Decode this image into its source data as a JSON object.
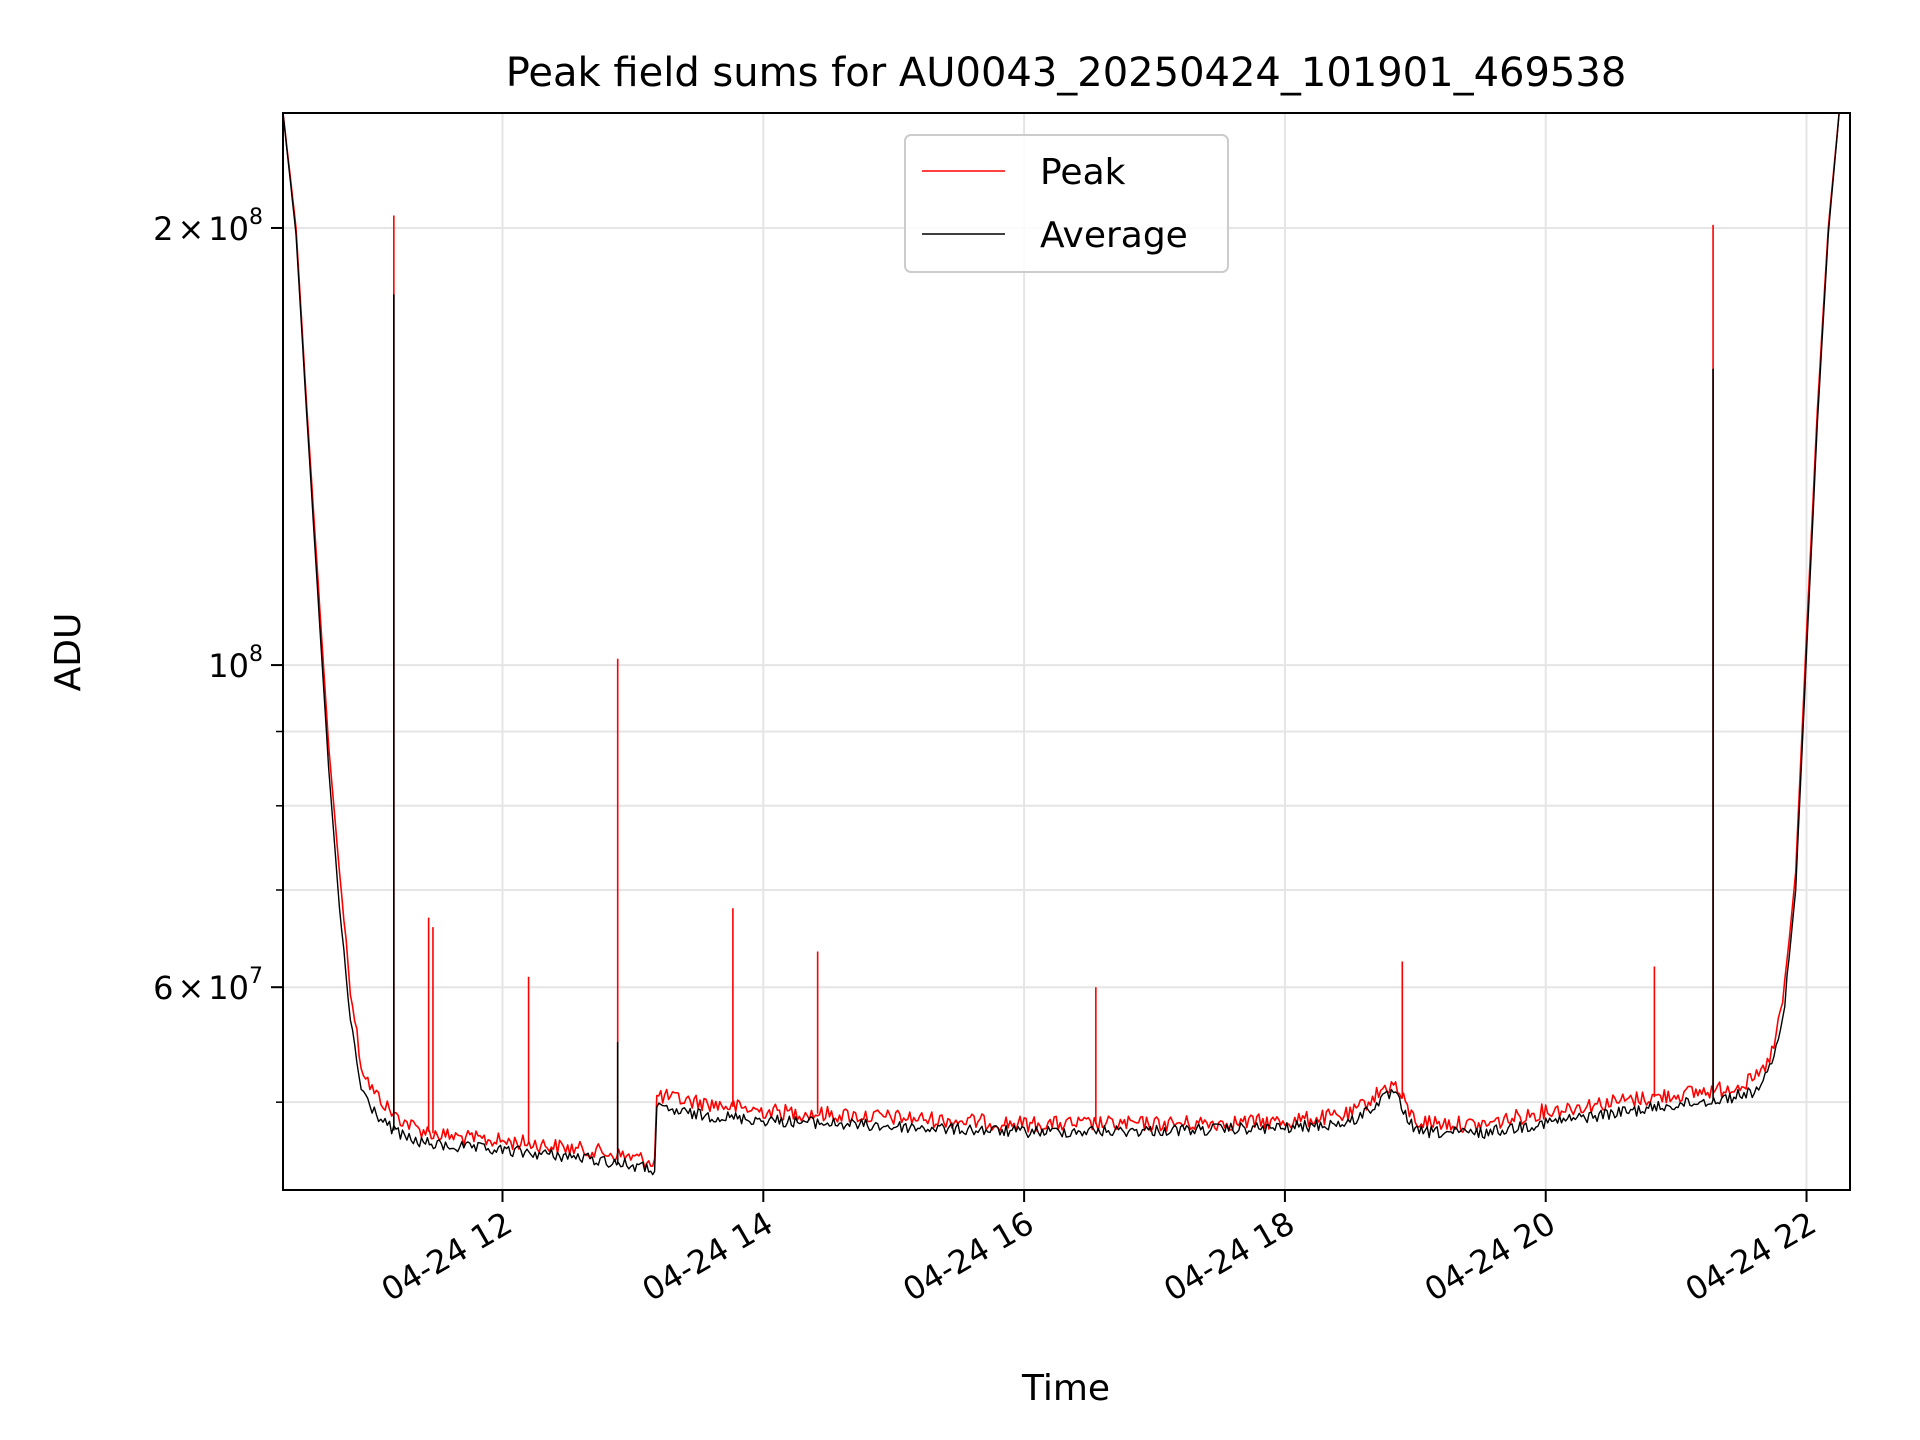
{
  "chart_data": {
    "type": "line",
    "title": "Peak field sums for AU0043_20250424_101901_469538",
    "xlabel": "Time",
    "ylabel": "ADU",
    "y_scale": "log",
    "xlim": [
      "2025-04-24 10:19",
      "2025-04-24 22:20"
    ],
    "ylim": [
      43500000.0,
      240000000.0
    ],
    "x_ticks": [
      {
        "value": "2025-04-24 12:00",
        "label": "04-24 12"
      },
      {
        "value": "2025-04-24 14:00",
        "label": "04-24 14"
      },
      {
        "value": "2025-04-24 16:00",
        "label": "04-24 16"
      },
      {
        "value": "2025-04-24 18:00",
        "label": "04-24 18"
      },
      {
        "value": "2025-04-24 20:00",
        "label": "04-24 20"
      },
      {
        "value": "2025-04-24 22:00",
        "label": "04-24 22"
      }
    ],
    "y_ticks_major": [
      {
        "value": 100000000,
        "base": "10",
        "exponent": "8"
      },
      {
        "value": 200000000,
        "mantissa": "2",
        "times": "×",
        "base": "10",
        "exponent": "8"
      },
      {
        "value": 60000000,
        "mantissa": "6",
        "times": "×",
        "base": "10",
        "exponent": "7"
      }
    ],
    "y_ticks_minor": [
      50000000,
      70000000,
      80000000,
      90000000
    ],
    "grid": true,
    "legend_position": "top-center",
    "series": [
      {
        "name": "Peak",
        "color": "#ff0000",
        "x": [
          "2025-04-24 10:19",
          "2025-04-24 10:25",
          "2025-04-24 10:30",
          "2025-04-24 10:35",
          "2025-04-24 10:40",
          "2025-04-24 10:45",
          "2025-04-24 10:50",
          "2025-04-24 10:55",
          "2025-04-24 11:00",
          "2025-04-24 11:05",
          "2025-04-24 11:10",
          "2025-04-24 11:15",
          "2025-04-24 11:20",
          "2025-04-24 11:30",
          "2025-04-24 11:45",
          "2025-04-24 12:00",
          "2025-04-24 12:15",
          "2025-04-24 12:30",
          "2025-04-24 12:45",
          "2025-04-24 13:00",
          "2025-04-24 13:10",
          "2025-04-24 13:11",
          "2025-04-24 13:30",
          "2025-04-24 14:00",
          "2025-04-24 15:00",
          "2025-04-24 16:00",
          "2025-04-24 17:00",
          "2025-04-24 18:00",
          "2025-04-24 18:30",
          "2025-04-24 18:45",
          "2025-04-24 18:50",
          "2025-04-24 19:00",
          "2025-04-24 19:30",
          "2025-04-24 20:00",
          "2025-04-24 20:30",
          "2025-04-24 21:00",
          "2025-04-24 21:20",
          "2025-04-24 21:35",
          "2025-04-24 21:40",
          "2025-04-24 21:45",
          "2025-04-24 21:50",
          "2025-04-24 21:55",
          "2025-04-24 22:00",
          "2025-04-24 22:05",
          "2025-04-24 22:10",
          "2025-04-24 22:15"
        ],
        "y": [
          240000000,
          200000000,
          150000000,
          115000000,
          88000000,
          72000000,
          60000000,
          53000000,
          51000000,
          50000000,
          49000000,
          48500000,
          48000000,
          47500000,
          47200000,
          47000000,
          46800000,
          46500000,
          46200000,
          45800000,
          45500000,
          50500000,
          50000000,
          49300000,
          48800000,
          48300000,
          48300000,
          48500000,
          49000000,
          51000000,
          51500000,
          48500000,
          48200000,
          49300000,
          50000000,
          50600000,
          51000000,
          51700000,
          52500000,
          54500000,
          60000000,
          72000000,
          105000000,
          150000000,
          200000000,
          240000000
        ],
        "spikes": [
          {
            "x": "2025-04-24 11:10",
            "y": 204000000
          },
          {
            "x": "2025-04-24 11:26",
            "y": 67000000
          },
          {
            "x": "2025-04-24 11:28",
            "y": 66000000
          },
          {
            "x": "2025-04-24 12:12",
            "y": 61000000
          },
          {
            "x": "2025-04-24 12:53",
            "y": 101000000
          },
          {
            "x": "2025-04-24 13:46",
            "y": 68000000
          },
          {
            "x": "2025-04-24 14:25",
            "y": 63500000
          },
          {
            "x": "2025-04-24 16:33",
            "y": 60000000
          },
          {
            "x": "2025-04-24 18:54",
            "y": 62500000
          },
          {
            "x": "2025-04-24 20:50",
            "y": 62000000
          },
          {
            "x": "2025-04-24 21:17",
            "y": 201000000
          }
        ]
      },
      {
        "name": "Average",
        "color": "#000000",
        "x": [
          "2025-04-24 10:19",
          "2025-04-24 10:25",
          "2025-04-24 10:30",
          "2025-04-24 10:35",
          "2025-04-24 10:40",
          "2025-04-24 10:45",
          "2025-04-24 10:50",
          "2025-04-24 10:55",
          "2025-04-24 11:00",
          "2025-04-24 11:05",
          "2025-04-24 11:10",
          "2025-04-24 11:15",
          "2025-04-24 11:20",
          "2025-04-24 11:30",
          "2025-04-24 11:45",
          "2025-04-24 12:00",
          "2025-04-24 12:15",
          "2025-04-24 12:30",
          "2025-04-24 12:45",
          "2025-04-24 13:00",
          "2025-04-24 13:10",
          "2025-04-24 13:11",
          "2025-04-24 13:30",
          "2025-04-24 14:00",
          "2025-04-24 15:00",
          "2025-04-24 16:00",
          "2025-04-24 17:00",
          "2025-04-24 18:00",
          "2025-04-24 18:30",
          "2025-04-24 18:45",
          "2025-04-24 18:50",
          "2025-04-24 19:00",
          "2025-04-24 19:30",
          "2025-04-24 20:00",
          "2025-04-24 20:30",
          "2025-04-24 21:00",
          "2025-04-24 21:20",
          "2025-04-24 21:35",
          "2025-04-24 21:40",
          "2025-04-24 21:45",
          "2025-04-24 21:50",
          "2025-04-24 21:55",
          "2025-04-24 22:00",
          "2025-04-24 22:05",
          "2025-04-24 22:10",
          "2025-04-24 22:15"
        ],
        "y": [
          240000000,
          198000000,
          148000000,
          112000000,
          85000000,
          68000000,
          57000000,
          51000000,
          49500000,
          48500000,
          47800000,
          47300000,
          47000000,
          46700000,
          46500000,
          46300000,
          46100000,
          45900000,
          45600000,
          45200000,
          44900000,
          49500000,
          49000000,
          48600000,
          48100000,
          47700000,
          47800000,
          48000000,
          48400000,
          50200000,
          50800000,
          47700000,
          47600000,
          48400000,
          49100000,
          49800000,
          50200000,
          50800000,
          51500000,
          53500000,
          58500000,
          70000000,
          102000000,
          147000000,
          198000000,
          240000000
        ],
        "spikes": [
          {
            "x": "2025-04-24 11:10",
            "y": 180000000
          },
          {
            "x": "2025-04-24 12:53",
            "y": 55000000
          },
          {
            "x": "2025-04-24 21:17",
            "y": 160000000
          }
        ]
      }
    ]
  }
}
